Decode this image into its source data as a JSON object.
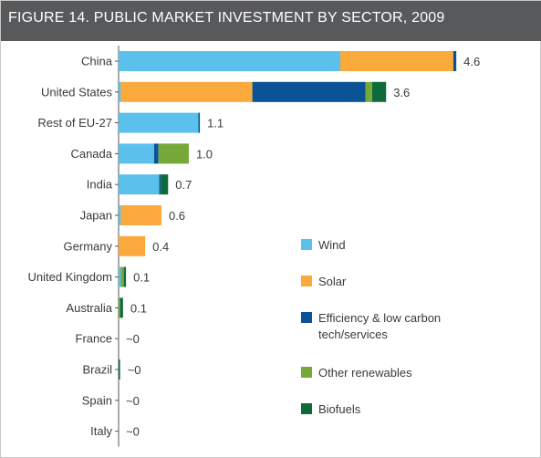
{
  "title": "FIGURE 14. PUBLIC MARKET INVESTMENT BY SECTOR, 2009",
  "chart_data": {
    "type": "bar",
    "orientation": "horizontal",
    "stacked": true,
    "categories": [
      "China",
      "United States",
      "Rest of EU-27",
      "Canada",
      "India",
      "Japan",
      "Germany",
      "United Kingdom",
      "Australia",
      "France",
      "Brazil",
      "Spain",
      "Italy"
    ],
    "series": [
      {
        "name": "Wind",
        "color": "#5bc0eb",
        "values": [
          3.0,
          0.03,
          1.08,
          0.48,
          0.55,
          0.03,
          0.0,
          0.03,
          0.0,
          0.0,
          0.0,
          0.0,
          0.0
        ]
      },
      {
        "name": "Solar",
        "color": "#faaa3c",
        "values": [
          1.53,
          1.78,
          0.0,
          0.0,
          0.0,
          0.55,
          0.36,
          0.0,
          0.0,
          0.0,
          0.0,
          0.0,
          0.0
        ]
      },
      {
        "name": "Efficiency & low carbon tech/services",
        "color": "#0b5394",
        "values": [
          0.04,
          1.53,
          0.02,
          0.06,
          0.02,
          0.0,
          0.0,
          0.0,
          0.0,
          0.0,
          0.0,
          0.0,
          0.0
        ]
      },
      {
        "name": "Other renewables",
        "color": "#76a83a",
        "values": [
          0.0,
          0.09,
          0.0,
          0.41,
          0.0,
          0.0,
          0.0,
          0.04,
          0.02,
          0.0,
          0.0,
          0.0,
          0.0
        ]
      },
      {
        "name": "Biofuels",
        "color": "#0d6b3b",
        "values": [
          0.0,
          0.19,
          0.0,
          0.0,
          0.1,
          0.0,
          0.0,
          0.03,
          0.04,
          0.0,
          0.02,
          0.0,
          0.0
        ]
      }
    ],
    "totals_labels": [
      "4.6",
      "3.6",
      "1.1",
      "1.0",
      "0.7",
      "0.6",
      "0.4",
      "0.1",
      "0.1",
      "~0",
      "~0",
      "~0",
      "~0"
    ],
    "xlim": [
      0,
      4.6
    ],
    "legend_position": "right",
    "grid": false
  }
}
